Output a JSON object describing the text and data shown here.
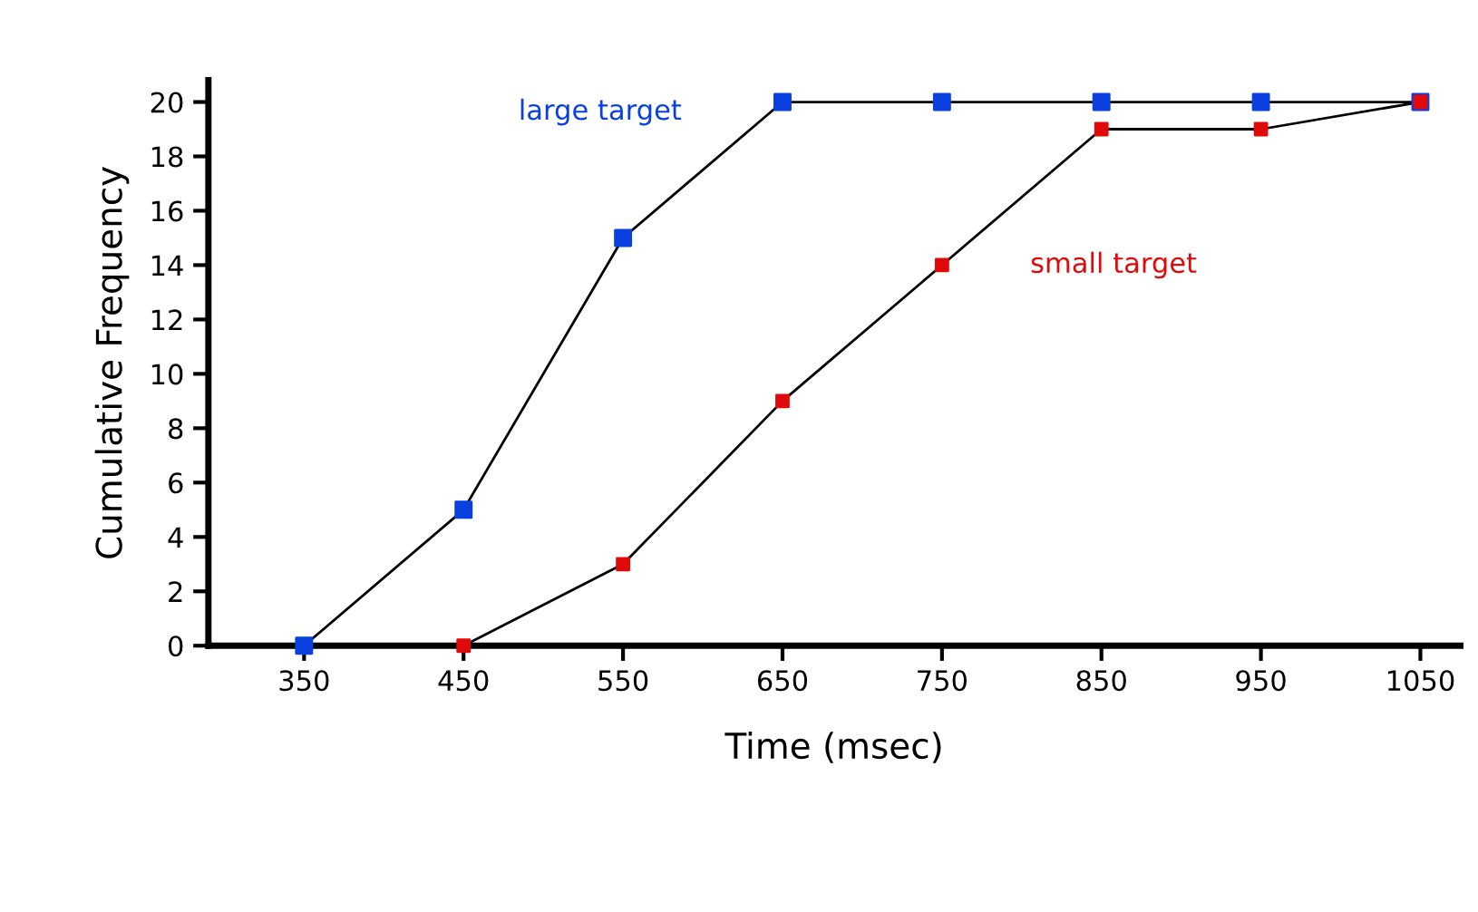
{
  "chart_data": {
    "type": "line",
    "xlabel": "Time (msec)",
    "ylabel": "Cumulative Frequency",
    "series": [
      {
        "name": "large target",
        "color": "#0a3fe0",
        "x": [
          350,
          450,
          550,
          650,
          750,
          850,
          950,
          1050
        ],
        "values": [
          0,
          5,
          15,
          20,
          20,
          20,
          20,
          20
        ]
      },
      {
        "name": "small target",
        "color": "#e00a0a",
        "x": [
          450,
          550,
          650,
          750,
          850,
          950,
          1050
        ],
        "values": [
          0,
          3,
          9,
          14,
          19,
          19,
          20
        ]
      }
    ],
    "xlim": [
      290,
      1075
    ],
    "xticks": [
      350,
      450,
      550,
      650,
      750,
      850,
      950,
      1050
    ],
    "ylim": [
      0,
      20.8
    ],
    "yticks": [
      0,
      2,
      4,
      6,
      8,
      10,
      12,
      14,
      16,
      18,
      20
    ],
    "grid": false,
    "legend": false,
    "marker": "square",
    "line_style": "solid"
  }
}
